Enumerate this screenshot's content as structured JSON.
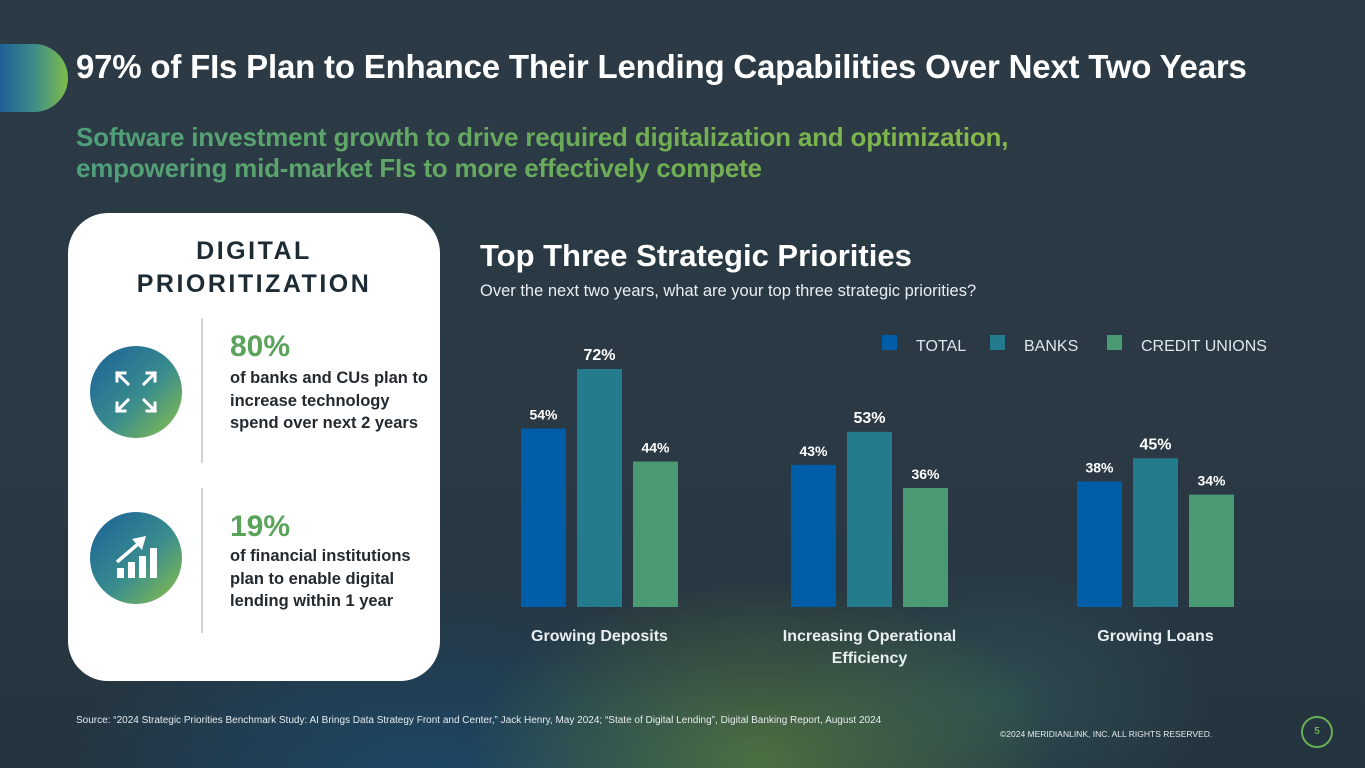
{
  "header": {
    "title": "97% of FIs Plan to Enhance Their Lending Capabilities Over Next Two Years",
    "subtitle_line1": "Software investment growth to drive required digitalization and optimization,",
    "subtitle_line2": "empowering mid-market FIs to more effectively compete"
  },
  "card": {
    "heading_line1": "DIGITAL",
    "heading_line2": "PRIORITIZATION",
    "stats": [
      {
        "icon": "expand-arrows-icon",
        "percent": "80%",
        "text": "of banks and CUs plan to increase technology spend over next 2 years"
      },
      {
        "icon": "growth-chart-icon",
        "percent": "19%",
        "text": "of financial institutions plan to enable digital lending within 1 year"
      }
    ]
  },
  "chart_data": {
    "type": "bar",
    "title": "Top Three Strategic Priorities",
    "subtitle": "Over the next two years, what are your top three strategic priorities?",
    "categories": [
      "Growing Deposits",
      "Increasing Operational Efficiency",
      "Growing Loans"
    ],
    "category_lines": [
      [
        "Growing Deposits"
      ],
      [
        "Increasing Operational",
        "Efficiency"
      ],
      [
        "Growing Loans"
      ]
    ],
    "series": [
      {
        "name": "TOTAL",
        "values": [
          54,
          43,
          38
        ],
        "color": "#005ea8"
      },
      {
        "name": "BANKS",
        "values": [
          72,
          53,
          45
        ],
        "color": "#237b8d"
      },
      {
        "name": "CREDIT UNIONS",
        "values": [
          44,
          36,
          34
        ],
        "color": "#4a9a73"
      }
    ],
    "value_suffix": "%",
    "ylim": [
      0,
      72
    ],
    "legend": "top-right",
    "grid": false
  },
  "footer": {
    "source": "Source: “2024 Strategic Priorities Benchmark Study: AI Brings Data Strategy Front and Center,” Jack Henry, May 2024; “State of Digital Lending”, Digital Banking Report, August 2024",
    "copyright": "©2024 MERIDIANLINK, INC. ALL RIGHTS RESERVED.",
    "page_number": "5"
  }
}
